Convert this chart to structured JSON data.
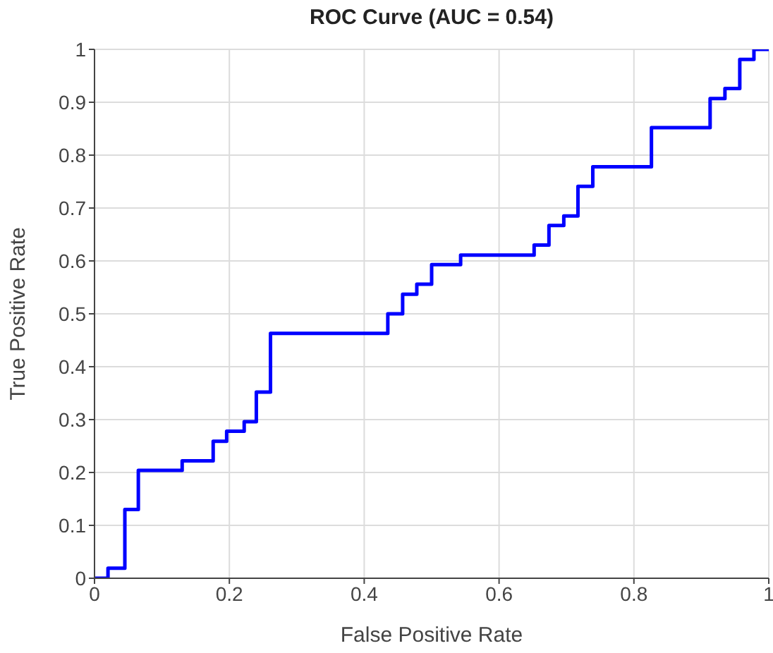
{
  "chart_data": {
    "type": "step",
    "title": "ROC Curve (AUC = 0.54)",
    "xlabel": "False Positive Rate",
    "ylabel": "True Positive Rate",
    "series": [
      {
        "color": "#0000ff",
        "x": [
          0,
          0.02,
          0.045,
          0.065,
          0.13,
          0.176,
          0.196,
          0.222,
          0.24,
          0.261,
          0.435,
          0.457,
          0.478,
          0.5,
          0.543,
          0.652,
          0.674,
          0.696,
          0.717,
          0.739,
          0.826,
          0.913,
          0.935,
          0.957,
          0.978,
          1
        ],
        "values": [
          0,
          0.019,
          0.13,
          0.204,
          0.222,
          0.259,
          0.278,
          0.296,
          0.352,
          0.463,
          0.5,
          0.537,
          0.556,
          0.593,
          0.611,
          0.63,
          0.667,
          0.685,
          0.741,
          0.778,
          0.852,
          0.907,
          0.926,
          0.981,
          1,
          1
        ]
      }
    ],
    "xlim": [
      0,
      1
    ],
    "xticks": [
      0,
      0.2,
      0.4,
      0.6,
      0.8,
      1
    ],
    "ylim": [
      0,
      1
    ],
    "yticks": [
      0,
      0.1,
      0.2,
      0.3,
      0.4,
      0.5,
      0.6,
      0.7,
      0.8,
      0.9,
      1
    ],
    "grid": true,
    "legend": false,
    "marker": "none",
    "line_style": "solid"
  }
}
